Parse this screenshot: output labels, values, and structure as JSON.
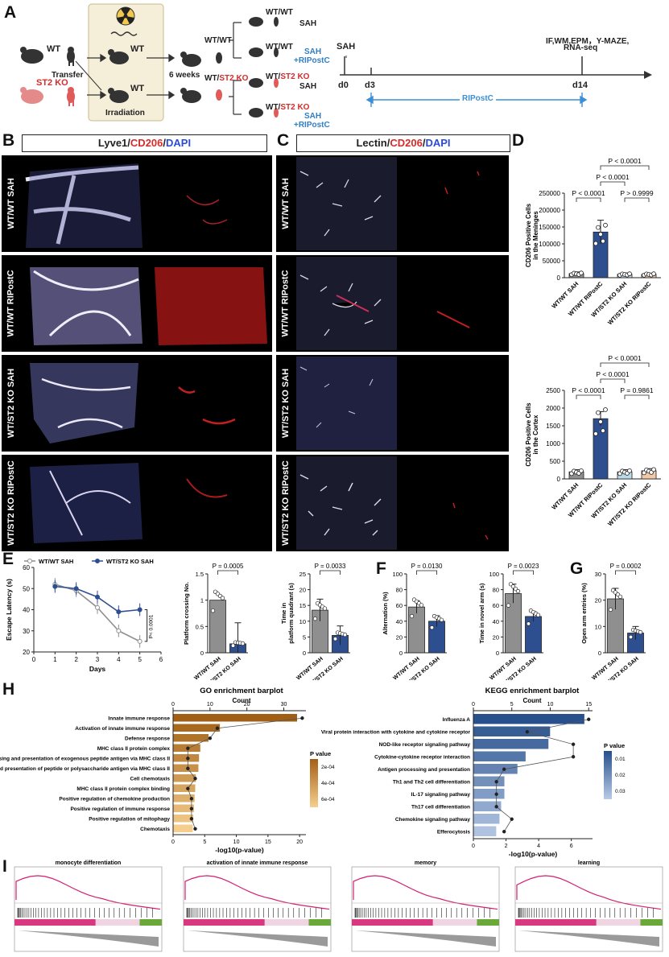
{
  "panel_labels": [
    "A",
    "B",
    "C",
    "D",
    "E",
    "F",
    "G",
    "H",
    "I"
  ],
  "panelA": {
    "wt": "WT",
    "st2ko": "ST2 KO",
    "transfer": "Transfer",
    "irradiation": "Irradiation",
    "six_weeks": "6 weeks",
    "wtwt": "WT/WT",
    "wt_slash": "WT/",
    "st2_ko_red": "ST2 KO",
    "sah": "SAH",
    "sah_ripostc_1": "SAH",
    "sah_ripostc_2": "+RIPostC",
    "timeline": {
      "sah": "SAH",
      "d0": "d0",
      "d3": "d3",
      "d14": "d14",
      "end_label_1": "IF,WM,EPM，Y-MAZE,",
      "end_label_2": "RNA-seq",
      "ripostc": "RIPostC"
    }
  },
  "panelB": {
    "header": {
      "a": "Lyve1",
      "sep1": "/",
      "b": "CD206",
      "sep2": "/",
      "c": "DAPI"
    },
    "rows": [
      "WT/WT SAH",
      "WT/WT RIPostC",
      "WT/ST2 KO SAH",
      "WT/ST2 KO RIPostC"
    ]
  },
  "panelC": {
    "header": {
      "a": "Lectin",
      "sep1": "/",
      "b": "CD206",
      "sep2": "/",
      "c": "DAPI"
    },
    "rows": [
      "WT/WT SAH",
      "WT/WT RIPostC",
      "WT/ST2 KO SAH",
      "WT/ST2 KO RIPostC"
    ]
  },
  "panelD": {
    "top": {
      "ylabel1": "CD206 Positive Cells",
      "ylabel2": "in the Meninges",
      "yticks": [
        "0",
        "50000",
        "100000",
        "150000",
        "200000",
        "250000"
      ],
      "pvals": [
        "P < 0.0001",
        "P < 0.0001",
        "P < 0.0001",
        "P > 0.9999"
      ]
    },
    "bottom": {
      "ylabel1": "CD206 Positive Cells",
      "ylabel2": "in the Cortex",
      "yticks": [
        "0",
        "500",
        "1000",
        "1500",
        "2000",
        "2500"
      ],
      "pvals": [
        "P < 0.0001",
        "P < 0.0001",
        "P < 0.0001",
        "P = 0.9861"
      ]
    },
    "groups": [
      "WT/WT SAH",
      "WT/WT RIPostC",
      "WT/ST2 KO SAH",
      "WT/ST2 KO RIPostC"
    ]
  },
  "panelE": {
    "legend": [
      "WT/WT SAH",
      "WT/ST2 KO SAH"
    ],
    "ylabel": "Escape Latency (s)",
    "xlabel": "Days",
    "sig": "P< 0.0001",
    "bar1": {
      "ylabel": "Platform crossing No.",
      "pval": "P = 0.0005"
    },
    "bar2": {
      "ylabel1": "Time in",
      "ylabel2": "platform quadrant (s)",
      "pval": "P = 0.0033"
    },
    "groups": [
      "WT/WT SAH",
      "WT/ST2 KO SAH"
    ]
  },
  "panelF": {
    "bar1": {
      "ylabel": "Alternation (%)",
      "pval": "P = 0.0130"
    },
    "bar2": {
      "ylabel": "Time in novel arm (s)",
      "pval": "P = 0.0023"
    }
  },
  "panelG": {
    "ylabel": "Open arm entries (%)",
    "pval": "P = 0.0002"
  },
  "panelH": {
    "go": {
      "title": "GO enrichment barplot",
      "count_label": "Count",
      "xlabel": "-log10(p-value)",
      "legend_title": "P value",
      "legend_ticks": [
        "2e-04",
        "4e-04",
        "6e-04"
      ],
      "terms": [
        "Innate immune response",
        "Activation of innate immune response",
        "Defense response",
        "MHC class II protein complex",
        "Antigen processing and presentation of exogenous peptide antigen via MHC class II",
        "Antigen processing and presentation of peptide or polysaccharide antigen via MHC class II",
        "Cell chemotaxis",
        "MHC class II protein complex binding",
        "Positive regulation of chemokine production",
        "Positive regulation of immune response",
        "Positive regulation of mitophagy",
        "Chemotaxis"
      ]
    },
    "kegg": {
      "title": "KEGG enrichment barplot",
      "count_label": "Count",
      "xlabel": "-log10(p-value)",
      "legend_title": "P value",
      "legend_ticks": [
        "0.01",
        "0.02",
        "0.03"
      ],
      "terms": [
        "Influenza A",
        "Viral protein interaction with cytokine and cytokine receptor",
        "NOD-like receptor signaling pathway",
        "Cytokine-cytokine receptor interaction",
        "Antigen processing and presentation",
        "Th1 and Th2 cell differentiation",
        "IL-17 signaling pathway",
        "Th17 cell differentiation",
        "Chemokine signaling pathway",
        "Efferocytosis"
      ]
    }
  },
  "panelI": {
    "titles": [
      "monocyte differentiation",
      "activation of innate immune response",
      "memory",
      "learning"
    ]
  },
  "chart_data": [
    {
      "type": "bar",
      "title": "",
      "ylabel": "CD206 Positive Cells in the Meninges",
      "categories": [
        "WT/WT SAH",
        "WT/WT RIPostC",
        "WT/ST2 KO SAH",
        "WT/ST2 KO RIPostC"
      ],
      "values": [
        12000,
        135000,
        10000,
        10000
      ],
      "errors": [
        5000,
        35000,
        4000,
        3000
      ],
      "ylim": [
        0,
        250000
      ],
      "colors": [
        "#8f8f8f",
        "#2e4f8f",
        "#b7dbe8",
        "#f3c9a5"
      ]
    },
    {
      "type": "bar",
      "title": "",
      "ylabel": "CD206 Positive Cells in the Cortex",
      "categories": [
        "WT/WT SAH",
        "WT/WT RIPostC",
        "WT/ST2 KO SAH",
        "WT/ST2 KO RIPostC"
      ],
      "values": [
        200,
        1700,
        200,
        230
      ],
      "errors": [
        60,
        200,
        60,
        60
      ],
      "ylim": [
        0,
        2500
      ],
      "colors": [
        "#8f8f8f",
        "#2e4f8f",
        "#b7dbe8",
        "#f3c9a5"
      ]
    },
    {
      "type": "line",
      "xlabel": "Days",
      "ylabel": "Escape Latency (s)",
      "x": [
        1,
        2,
        3,
        4,
        5
      ],
      "xlim": [
        0,
        6
      ],
      "ylim": [
        20,
        60
      ],
      "series": [
        {
          "name": "WT/WT SAH",
          "values": [
            52,
            49,
            41,
            30,
            25
          ]
        },
        {
          "name": "WT/ST2 KO SAH",
          "values": [
            51,
            50,
            46,
            39,
            40
          ]
        }
      ]
    },
    {
      "type": "bar",
      "ylabel": "Platform crossing No.",
      "categories": [
        "WT/WT SAH",
        "WT/ST2 KO SAH"
      ],
      "values": [
        1.0,
        0.17
      ],
      "errors": [
        0,
        0.4
      ],
      "ylim": [
        0,
        1.5
      ]
    },
    {
      "type": "bar",
      "ylabel": "Time in platform quadrant (s)",
      "categories": [
        "WT/WT SAH",
        "WT/ST2 KO SAH"
      ],
      "values": [
        13.5,
        5.5
      ],
      "errors": [
        3.5,
        3.0
      ],
      "ylim": [
        0,
        25
      ]
    },
    {
      "type": "bar",
      "ylabel": "Alternation (%)",
      "categories": [
        "WT/WT SAH",
        "WT/ST2 KO SAH"
      ],
      "values": [
        58,
        40
      ],
      "errors": [
        8,
        7
      ],
      "ylim": [
        0,
        100
      ]
    },
    {
      "type": "bar",
      "ylabel": "Time in novel arm (s)",
      "categories": [
        "WT/WT SAH",
        "WT/ST2 KO SAH"
      ],
      "values": [
        75,
        46
      ],
      "errors": [
        12,
        6
      ],
      "ylim": [
        0,
        100
      ]
    },
    {
      "type": "bar",
      "ylabel": "Open arm entries (%)",
      "categories": [
        "WT/WT SAH",
        "WT/ST2 KO SAH"
      ],
      "values": [
        20.5,
        7.5
      ],
      "errors": [
        4,
        2.5
      ],
      "ylim": [
        0,
        30
      ]
    },
    {
      "type": "bar",
      "title": "GO enrichment barplot",
      "xlabel": "-log10(p-value)",
      "orientation": "horizontal",
      "xticks": [
        0,
        5,
        10,
        15,
        20
      ],
      "count_ticks": [
        0,
        10,
        20,
        30
      ],
      "categories": [
        "Innate immune response",
        "Activation of innate immune response",
        "Defense response",
        "MHC class II protein complex",
        "Antigen processing and presentation of exogenous peptide antigen via MHC class II",
        "Antigen processing and presentation of peptide or polysaccharide antigen via MHC class II",
        "Cell chemotaxis",
        "MHC class II protein complex binding",
        "Positive regulation of chemokine production",
        "Positive regulation of immune response",
        "Positive regulation of mitophagy",
        "Chemotaxis"
      ],
      "values": [
        19.6,
        7.4,
        5.6,
        4.3,
        4.1,
        4.0,
        3.6,
        3.5,
        3.4,
        3.3,
        3.2,
        3.1
      ],
      "counts": [
        35,
        12,
        10,
        4,
        4,
        4,
        6,
        4,
        5,
        5,
        5,
        6
      ]
    },
    {
      "type": "bar",
      "title": "KEGG enrichment barplot",
      "xlabel": "-log10(p-value)",
      "orientation": "horizontal",
      "xticks": [
        0,
        2,
        4,
        6
      ],
      "count_ticks": [
        0,
        5,
        10,
        15
      ],
      "categories": [
        "Influenza A",
        "Viral protein interaction with cytokine and cytokine receptor",
        "NOD-like receptor signaling pathway",
        "Cytokine-cytokine receptor interaction",
        "Antigen processing and presentation",
        "Th1 and Th2 cell differentiation",
        "IL-17 signaling pathway",
        "Th17 cell differentiation",
        "Chemokine signaling pathway",
        "Efferocytosis"
      ],
      "values": [
        6.8,
        4.7,
        4.6,
        3.2,
        2.7,
        1.9,
        1.9,
        1.7,
        1.6,
        1.4
      ],
      "counts": [
        15,
        7,
        13,
        13,
        4,
        3,
        3,
        3,
        5,
        4
      ]
    }
  ]
}
